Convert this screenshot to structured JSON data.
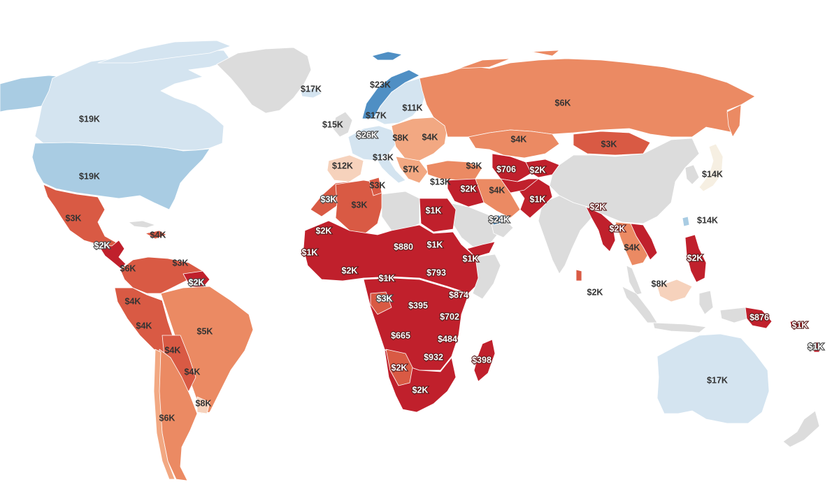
{
  "map": {
    "colors": {
      "no_data": "#dcdcdc",
      "blue_light": "#d4e4f0",
      "blue_mid": "#a9cce3",
      "blue_dark": "#4f8fc4",
      "peach": "#f6d2bc",
      "orange_light": "#f2a882",
      "orange": "#eb8a63",
      "red_orange": "#d95a44",
      "red": "#c0202c",
      "dark_red": "#b31b2b"
    },
    "labels": [
      {
        "id": "greenland",
        "text": "$17K"
      },
      {
        "id": "canada",
        "text": "$19K"
      },
      {
        "id": "usa",
        "text": "$19K"
      },
      {
        "id": "mexico",
        "text": "$3K"
      },
      {
        "id": "central-america",
        "text": "$2K"
      },
      {
        "id": "caribbean",
        "text": "$4K"
      },
      {
        "id": "venezuela",
        "text": "$3K"
      },
      {
        "id": "colombia",
        "text": "$6K"
      },
      {
        "id": "guyana",
        "text": "$2K"
      },
      {
        "id": "ecuador",
        "text": "$4K"
      },
      {
        "id": "peru",
        "text": "$4K"
      },
      {
        "id": "brazil",
        "text": "$5K"
      },
      {
        "id": "bolivia",
        "text": "$4K"
      },
      {
        "id": "paraguay",
        "text": "$4K"
      },
      {
        "id": "uruguay",
        "text": "$8K"
      },
      {
        "id": "chile-argentina",
        "text": "$6K"
      },
      {
        "id": "norway",
        "text": "$23K"
      },
      {
        "id": "sweden",
        "text": "$17K"
      },
      {
        "id": "finland-baltics",
        "text": "$11K"
      },
      {
        "id": "ireland-uk",
        "text": "$15K"
      },
      {
        "id": "benelux",
        "text": "$26K"
      },
      {
        "id": "poland",
        "text": "$8K"
      },
      {
        "id": "ukraine",
        "text": "$4K"
      },
      {
        "id": "spain",
        "text": "$12K"
      },
      {
        "id": "italy",
        "text": "$13K"
      },
      {
        "id": "balkans",
        "text": "$7K"
      },
      {
        "id": "greece",
        "text": "$13K"
      },
      {
        "id": "turkey",
        "text": "$3K"
      },
      {
        "id": "russia",
        "text": "$6K"
      },
      {
        "id": "kazakhstan",
        "text": "$4K"
      },
      {
        "id": "mongolia",
        "text": "$3K"
      },
      {
        "id": "uzbekistan",
        "text": "$706"
      },
      {
        "id": "kyrgyzstan",
        "text": "$2K"
      },
      {
        "id": "japan",
        "text": "$14K"
      },
      {
        "id": "taiwan",
        "text": "$14K"
      },
      {
        "id": "iraq",
        "text": "$2K"
      },
      {
        "id": "iran",
        "text": "$4K"
      },
      {
        "id": "pakistan",
        "text": "$1K"
      },
      {
        "id": "uae",
        "text": "$24K"
      },
      {
        "id": "bangladesh",
        "text": "$2K"
      },
      {
        "id": "myanmar",
        "text": "$2K"
      },
      {
        "id": "thailand",
        "text": "$4K"
      },
      {
        "id": "philippines",
        "text": "$2K"
      },
      {
        "id": "sri-lanka",
        "text": "$2K"
      },
      {
        "id": "malaysia",
        "text": "$8K"
      },
      {
        "id": "tunisia",
        "text": "$3K"
      },
      {
        "id": "morocco",
        "text": "$3K"
      },
      {
        "id": "algeria",
        "text": "$3K"
      },
      {
        "id": "egypt",
        "text": "$1K"
      },
      {
        "id": "mauritania",
        "text": "$2K"
      },
      {
        "id": "senegal",
        "text": "$1K"
      },
      {
        "id": "niger",
        "text": "$880"
      },
      {
        "id": "chad",
        "text": "$1K"
      },
      {
        "id": "yemen",
        "text": "$1K"
      },
      {
        "id": "ghana",
        "text": "$2K"
      },
      {
        "id": "nigeria",
        "text": "$1K"
      },
      {
        "id": "sudan",
        "text": "$793"
      },
      {
        "id": "gabon",
        "text": "$3K"
      },
      {
        "id": "drc",
        "text": "$395"
      },
      {
        "id": "ethiopia",
        "text": "$874"
      },
      {
        "id": "tanzania",
        "text": "$702"
      },
      {
        "id": "angola",
        "text": "$665"
      },
      {
        "id": "mozambique",
        "text": "$484"
      },
      {
        "id": "zimbabwe",
        "text": "$932"
      },
      {
        "id": "madagascar",
        "text": "$398"
      },
      {
        "id": "namibia",
        "text": "$2K"
      },
      {
        "id": "south-africa",
        "text": "$2K"
      },
      {
        "id": "png",
        "text": "$876"
      },
      {
        "id": "solomon",
        "text": "$1K"
      },
      {
        "id": "vanuatu",
        "text": "$1K"
      },
      {
        "id": "australia",
        "text": "$17K"
      }
    ]
  }
}
